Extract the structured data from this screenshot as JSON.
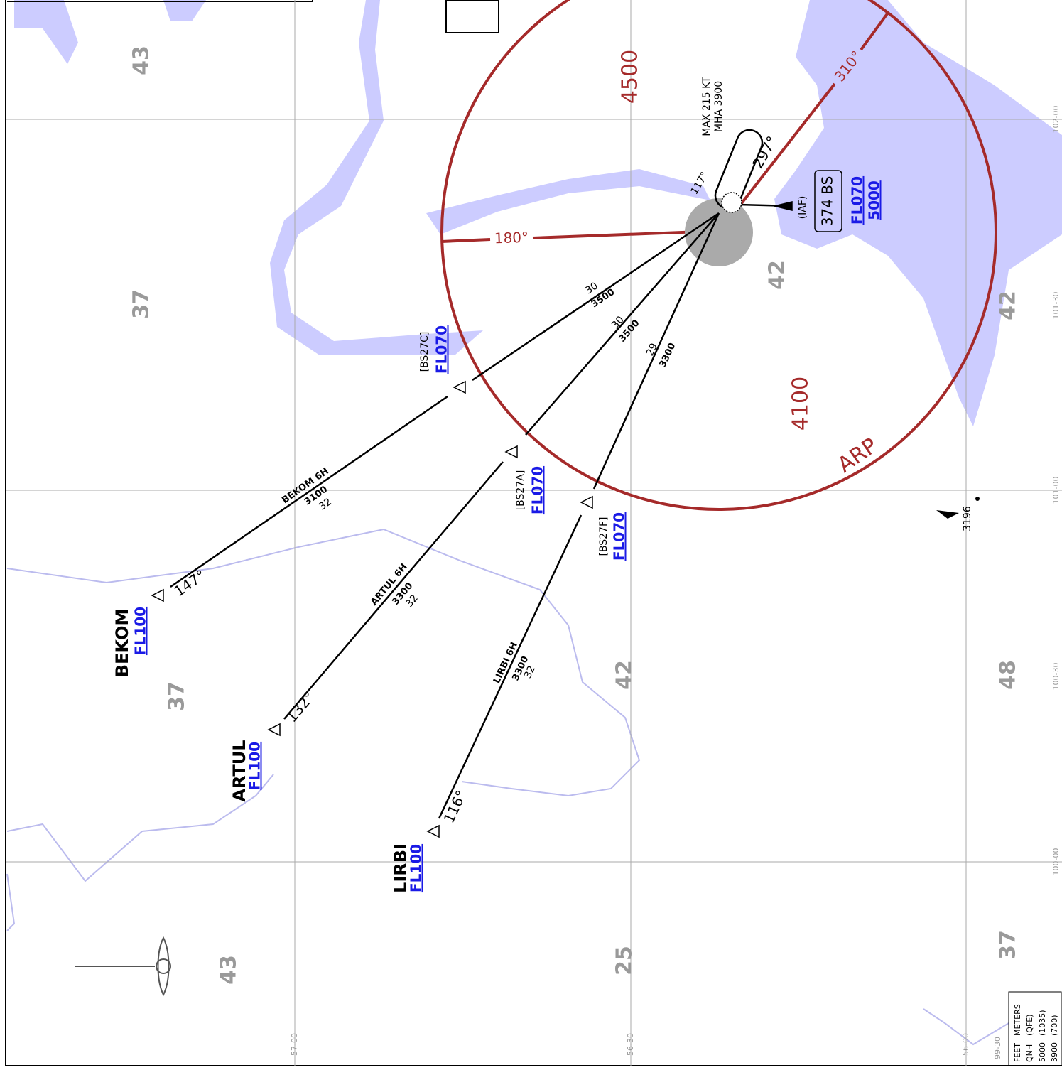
{
  "mora": [
    "43",
    "37",
    "42",
    "42",
    "37",
    "42",
    "48",
    "43",
    "25",
    "37"
  ],
  "sector": {
    "north": "4500",
    "south": "4100",
    "arp": "ARP",
    "boundary_west": "180°",
    "boundary_east": "310°"
  },
  "holding": {
    "speed": "MAX 215 KT",
    "mha": "MHA 3900",
    "inbound": "117°",
    "outbound": "297°"
  },
  "iaf": {
    "role": "(IAF)",
    "ident": "374 BS",
    "altitude_1": "FL070",
    "altitude_2": "5000"
  },
  "routes": [
    {
      "name": "BEKOM 6H",
      "fix": "BEKOM",
      "fix_altitude": "FL100",
      "course": "147°",
      "altitude": "3100",
      "distance": "32",
      "intermediate": "[BS27C]",
      "intermediate_altitude": "FL070",
      "final_distance": "30",
      "final_altitude": "3500"
    },
    {
      "name": "ARTUL 6H",
      "fix": "ARTUL",
      "fix_altitude": "FL100",
      "course": "132°",
      "altitude": "3300",
      "distance": "32",
      "intermediate": "[BS27A]",
      "intermediate_altitude": "FL070",
      "final_distance": "30",
      "final_altitude": "3500"
    },
    {
      "name": "LIRBI 6H",
      "fix": "LIRBI",
      "fix_altitude": "FL100",
      "course": "116°",
      "altitude": "3300",
      "distance": "32",
      "intermediate": "[BS27F]",
      "intermediate_altitude": "FL070",
      "final_distance": "29",
      "final_altitude": "3300"
    }
  ],
  "obstacle": "3196",
  "grid": {
    "longitude": [
      "102-00",
      "101-30",
      "101-00",
      "100-30",
      "100-00",
      "99-30"
    ],
    "latitude": [
      "57-00",
      "56-30",
      "56-00"
    ]
  },
  "table": {
    "header": [
      "FEET",
      "METERS"
    ],
    "rows": [
      [
        "QNH",
        "(QFE)"
      ],
      [
        "5000",
        "(1035)"
      ],
      [
        "3900",
        "(700)"
      ]
    ]
  }
}
